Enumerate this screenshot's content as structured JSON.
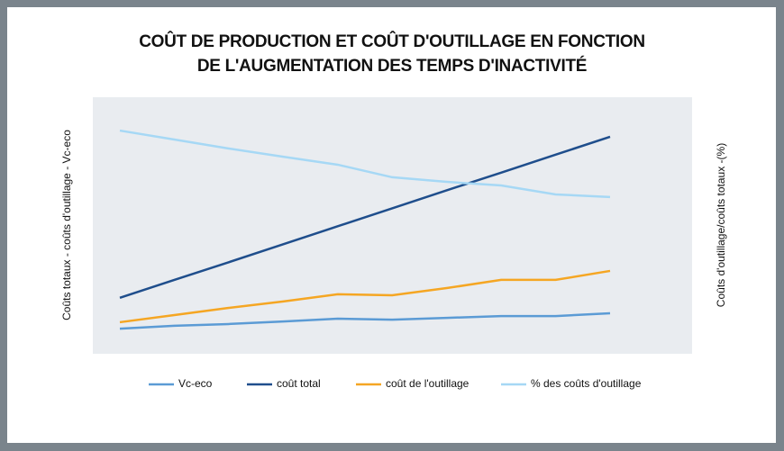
{
  "chart_data": {
    "type": "line",
    "title": [
      "COÛT DE PRODUCTION ET COÛT D'OUTILLAGE EN FONCTION",
      "DE L'AUGMENTATION DES TEMPS D'INACTIVITÉ"
    ],
    "y_label": "Coûts totaux - coûts d'outillage - Vc-eco",
    "y2_label": "Coûts d'outillage/coûts totaux -(%)",
    "categories": [
      null,
      null,
      null,
      null,
      null,
      null,
      null,
      null,
      null,
      null
    ],
    "ylim": [
      0,
      100
    ],
    "series": [
      {
        "name": "Vc-eco",
        "color": "#5b9bd5",
        "values": [
          9.8,
          10.9,
          11.6,
          12.6,
          13.7,
          13.3,
          14.0,
          14.7,
          14.7,
          15.8
        ]
      },
      {
        "name": "coût total",
        "color": "#1f4e8c",
        "values": [
          21.8,
          28.8,
          35.7,
          42.7,
          49.7,
          56.7,
          63.7,
          70.6,
          77.6,
          84.6
        ]
      },
      {
        "name": "coût de l'outillage",
        "color": "#f5a623",
        "values": [
          12.3,
          15.1,
          17.9,
          20.4,
          23.2,
          22.8,
          25.6,
          28.8,
          28.8,
          32.3
        ]
      },
      {
        "name": "% des coûts d'outillage",
        "color": "#a6d8f5",
        "values": [
          87.0,
          83.5,
          80.0,
          76.8,
          73.7,
          68.8,
          67.0,
          65.6,
          62.1,
          61.1
        ]
      }
    ]
  }
}
